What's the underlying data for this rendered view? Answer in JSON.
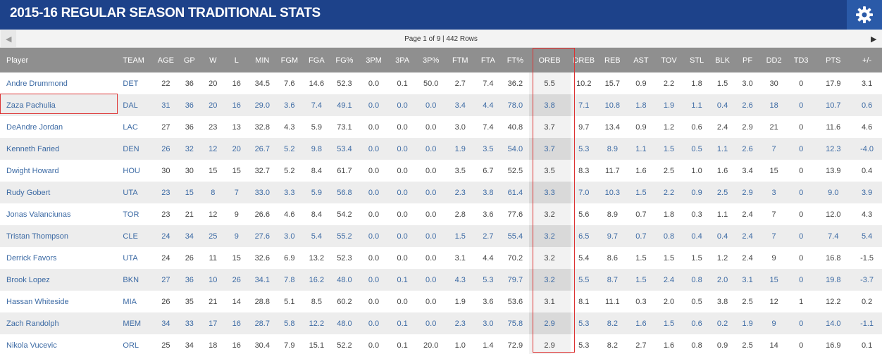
{
  "header": {
    "title": "2015-16 Regular Season Traditional Stats",
    "settings_icon": "gear-icon",
    "bg_color": "#1d428a"
  },
  "pager": {
    "info": "Page 1 of 9 | 442 Rows",
    "prev_icon": "chevron-left-icon",
    "next_icon": "chevron-right-icon"
  },
  "table": {
    "columns": [
      "Player",
      "TEAM",
      "AGE",
      "GP",
      "W",
      "L",
      "MIN",
      "FGM",
      "FGA",
      "FG%",
      "3PM",
      "3PA",
      "3P%",
      "FTM",
      "FTA",
      "FT%",
      "OREB",
      "DREB",
      "REB",
      "AST",
      "TOV",
      "STL",
      "BLK",
      "PF",
      "DD2",
      "TD3",
      "PTS",
      "+/-"
    ],
    "sorted_column": "OREB",
    "rows": [
      [
        "Andre Drummond",
        "DET",
        "22",
        "36",
        "20",
        "16",
        "34.5",
        "7.6",
        "14.6",
        "52.3",
        "0.0",
        "0.1",
        "50.0",
        "2.7",
        "7.4",
        "36.2",
        "5.5",
        "10.2",
        "15.7",
        "0.9",
        "2.2",
        "1.8",
        "1.5",
        "3.0",
        "30",
        "0",
        "17.9",
        "3.1"
      ],
      [
        "Zaza Pachulia",
        "DAL",
        "31",
        "36",
        "20",
        "16",
        "29.0",
        "3.6",
        "7.4",
        "49.1",
        "0.0",
        "0.0",
        "0.0",
        "3.4",
        "4.4",
        "78.0",
        "3.8",
        "7.1",
        "10.8",
        "1.8",
        "1.9",
        "1.1",
        "0.4",
        "2.6",
        "18",
        "0",
        "10.7",
        "0.6"
      ],
      [
        "DeAndre Jordan",
        "LAC",
        "27",
        "36",
        "23",
        "13",
        "32.8",
        "4.3",
        "5.9",
        "73.1",
        "0.0",
        "0.0",
        "0.0",
        "3.0",
        "7.4",
        "40.8",
        "3.7",
        "9.7",
        "13.4",
        "0.9",
        "1.2",
        "0.6",
        "2.4",
        "2.9",
        "21",
        "0",
        "11.6",
        "4.6"
      ],
      [
        "Kenneth Faried",
        "DEN",
        "26",
        "32",
        "12",
        "20",
        "26.7",
        "5.2",
        "9.8",
        "53.4",
        "0.0",
        "0.0",
        "0.0",
        "1.9",
        "3.5",
        "54.0",
        "3.7",
        "5.3",
        "8.9",
        "1.1",
        "1.5",
        "0.5",
        "1.1",
        "2.6",
        "7",
        "0",
        "12.3",
        "-4.0"
      ],
      [
        "Dwight Howard",
        "HOU",
        "30",
        "30",
        "15",
        "15",
        "32.7",
        "5.2",
        "8.4",
        "61.7",
        "0.0",
        "0.0",
        "0.0",
        "3.5",
        "6.7",
        "52.5",
        "3.5",
        "8.3",
        "11.7",
        "1.6",
        "2.5",
        "1.0",
        "1.6",
        "3.4",
        "15",
        "0",
        "13.9",
        "0.4"
      ],
      [
        "Rudy Gobert",
        "UTA",
        "23",
        "15",
        "8",
        "7",
        "33.0",
        "3.3",
        "5.9",
        "56.8",
        "0.0",
        "0.0",
        "0.0",
        "2.3",
        "3.8",
        "61.4",
        "3.3",
        "7.0",
        "10.3",
        "1.5",
        "2.2",
        "0.9",
        "2.5",
        "2.9",
        "3",
        "0",
        "9.0",
        "3.9"
      ],
      [
        "Jonas Valanciunas",
        "TOR",
        "23",
        "21",
        "12",
        "9",
        "26.6",
        "4.6",
        "8.4",
        "54.2",
        "0.0",
        "0.0",
        "0.0",
        "2.8",
        "3.6",
        "77.6",
        "3.2",
        "5.6",
        "8.9",
        "0.7",
        "1.8",
        "0.3",
        "1.1",
        "2.4",
        "7",
        "0",
        "12.0",
        "4.3"
      ],
      [
        "Tristan Thompson",
        "CLE",
        "24",
        "34",
        "25",
        "9",
        "27.6",
        "3.0",
        "5.4",
        "55.2",
        "0.0",
        "0.0",
        "0.0",
        "1.5",
        "2.7",
        "55.4",
        "3.2",
        "6.5",
        "9.7",
        "0.7",
        "0.8",
        "0.4",
        "0.4",
        "2.4",
        "7",
        "0",
        "7.4",
        "5.4"
      ],
      [
        "Derrick Favors",
        "UTA",
        "24",
        "26",
        "11",
        "15",
        "32.6",
        "6.9",
        "13.2",
        "52.3",
        "0.0",
        "0.0",
        "0.0",
        "3.1",
        "4.4",
        "70.2",
        "3.2",
        "5.4",
        "8.6",
        "1.5",
        "1.5",
        "1.5",
        "1.2",
        "2.4",
        "9",
        "0",
        "16.8",
        "-1.5"
      ],
      [
        "Brook Lopez",
        "BKN",
        "27",
        "36",
        "10",
        "26",
        "34.1",
        "7.8",
        "16.2",
        "48.0",
        "0.0",
        "0.1",
        "0.0",
        "4.3",
        "5.3",
        "79.7",
        "3.2",
        "5.5",
        "8.7",
        "1.5",
        "2.4",
        "0.8",
        "2.0",
        "3.1",
        "15",
        "0",
        "19.8",
        "-3.7"
      ],
      [
        "Hassan Whiteside",
        "MIA",
        "26",
        "35",
        "21",
        "14",
        "28.8",
        "5.1",
        "8.5",
        "60.2",
        "0.0",
        "0.0",
        "0.0",
        "1.9",
        "3.6",
        "53.6",
        "3.1",
        "8.1",
        "11.1",
        "0.3",
        "2.0",
        "0.5",
        "3.8",
        "2.5",
        "12",
        "1",
        "12.2",
        "0.2"
      ],
      [
        "Zach Randolph",
        "MEM",
        "34",
        "33",
        "17",
        "16",
        "28.7",
        "5.8",
        "12.2",
        "48.0",
        "0.0",
        "0.1",
        "0.0",
        "2.3",
        "3.0",
        "75.8",
        "2.9",
        "5.3",
        "8.2",
        "1.6",
        "1.5",
        "0.6",
        "0.2",
        "1.9",
        "9",
        "0",
        "14.0",
        "-1.1"
      ],
      [
        "Nikola Vucevic",
        "ORL",
        "25",
        "34",
        "18",
        "16",
        "30.4",
        "7.9",
        "15.1",
        "52.2",
        "0.0",
        "0.1",
        "20.0",
        "1.0",
        "1.4",
        "72.9",
        "2.9",
        "5.3",
        "8.2",
        "2.7",
        "1.6",
        "0.8",
        "0.9",
        "2.5",
        "14",
        "0",
        "16.9",
        "0.1"
      ]
    ]
  }
}
